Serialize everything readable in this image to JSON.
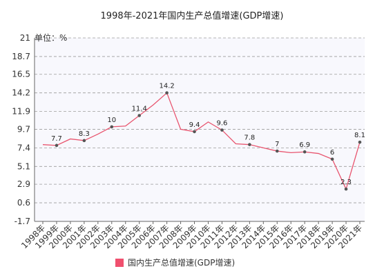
{
  "title": "1998年-2021年国内生产总值增速(GDP增速)",
  "colors": {
    "line": "#e8546e",
    "marker": "#555555",
    "plot_bg": "#f8f8fd",
    "grid": "#9a9a9a",
    "legend_swatch": "#f0506e"
  },
  "chart_data": {
    "type": "line",
    "title": "1998年-2021年国内生产总值增速(GDP增速)",
    "unit_label": "单位：%",
    "categories": [
      "1998年",
      "1999年",
      "2000年",
      "2001年",
      "2002年",
      "2003年",
      "2004年",
      "2005年",
      "2006年",
      "2007年",
      "2008年",
      "2009年",
      "2010年",
      "2011年",
      "2012年",
      "2013年",
      "2014年",
      "2015年",
      "2016年",
      "2017年",
      "2018年",
      "2019年",
      "2020年",
      "2021年"
    ],
    "yticks": [
      "21",
      "18.7",
      "16.5",
      "14.2",
      "11.9",
      "9.7",
      "7.4",
      "5.1",
      "2.9",
      "0.6",
      "-1.7"
    ],
    "ylim": [
      -1.7,
      21
    ],
    "grid": true,
    "legend_position": "bottom",
    "series": [
      {
        "name": "国内生产总值增速(GDP增速)",
        "values": [
          7.8,
          7.7,
          8.5,
          8.3,
          9.1,
          10,
          10.1,
          11.4,
          12.7,
          14.2,
          9.7,
          9.4,
          10.6,
          9.6,
          7.9,
          7.8,
          7.4,
          7,
          6.8,
          6.9,
          6.7,
          6,
          2.3,
          8.1
        ],
        "labeled_points": [
          {
            "index": 1,
            "label": "7.7"
          },
          {
            "index": 3,
            "label": "8.3"
          },
          {
            "index": 5,
            "label": "10"
          },
          {
            "index": 7,
            "label": "11.4"
          },
          {
            "index": 9,
            "label": "14.2"
          },
          {
            "index": 11,
            "label": "9.4"
          },
          {
            "index": 13,
            "label": "9.6"
          },
          {
            "index": 15,
            "label": "7.8"
          },
          {
            "index": 17,
            "label": "7"
          },
          {
            "index": 19,
            "label": "6.9"
          },
          {
            "index": 21,
            "label": "6"
          },
          {
            "index": 22,
            "label": "2.3"
          },
          {
            "index": 23,
            "label": "8.1"
          }
        ]
      }
    ]
  }
}
